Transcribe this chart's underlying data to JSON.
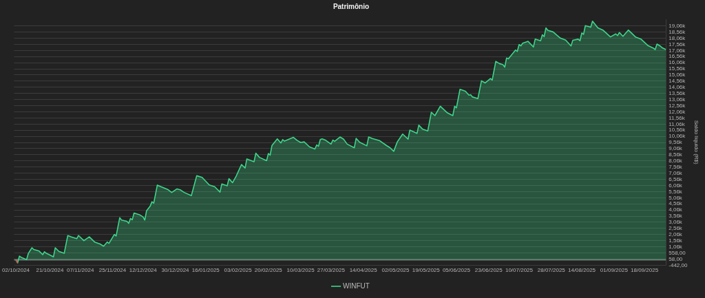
{
  "chart_data": {
    "type": "area",
    "title": "Patrimônio",
    "ylabel": "Saldo líquido (R$)",
    "x": [
      "2024-10-02",
      "2024-10-03",
      "2024-10-04",
      "2024-10-05",
      "2024-10-08",
      "2024-10-09",
      "2024-10-11",
      "2024-10-12",
      "2024-10-15",
      "2024-10-17",
      "2024-10-18",
      "2024-10-19",
      "2024-10-21",
      "2024-10-23",
      "2024-10-24",
      "2024-10-26",
      "2024-10-29",
      "2024-10-31",
      "2024-11-02",
      "2024-11-05",
      "2024-11-06",
      "2024-11-09",
      "2024-11-12",
      "2024-11-15",
      "2024-11-18",
      "2024-11-20",
      "2024-11-22",
      "2024-11-23",
      "2024-11-26",
      "2024-11-27",
      "2024-11-29",
      "2024-11-30",
      "2024-12-03",
      "2024-12-04",
      "2024-12-05",
      "2024-12-06",
      "2024-12-07",
      "2024-12-10",
      "2024-12-12",
      "2024-12-13",
      "2024-12-14",
      "2024-12-16",
      "2024-12-17",
      "2024-12-18",
      "2024-12-20",
      "2024-12-22",
      "2024-12-26",
      "2024-12-28",
      "2024-12-31",
      "2025-01-02",
      "2025-01-04",
      "2025-01-08",
      "2025-01-11",
      "2025-01-14",
      "2025-01-18",
      "2025-01-21",
      "2025-01-24",
      "2025-01-25",
      "2025-01-28",
      "2025-01-29",
      "2025-01-31",
      "2025-02-02",
      "2025-02-05",
      "2025-02-07",
      "2025-02-08",
      "2025-02-12",
      "2025-02-13",
      "2025-02-15",
      "2025-02-19",
      "2025-02-20",
      "2025-02-21",
      "2025-02-22",
      "2025-02-25",
      "2025-02-27",
      "2025-02-28",
      "2025-03-01",
      "2025-03-06",
      "2025-03-08",
      "2025-03-10",
      "2025-03-12",
      "2025-03-15",
      "2025-03-18",
      "2025-03-19",
      "2025-03-20",
      "2025-03-21",
      "2025-03-22",
      "2025-03-24",
      "2025-03-27",
      "2025-03-28",
      "2025-03-29",
      "2025-04-01",
      "2025-04-03",
      "2025-04-05",
      "2025-04-09",
      "2025-04-10",
      "2025-04-12",
      "2025-04-16",
      "2025-04-17",
      "2025-04-19",
      "2025-04-23",
      "2025-04-27",
      "2025-04-29",
      "2025-05-01",
      "2025-05-03",
      "2025-05-06",
      "2025-05-09",
      "2025-05-10",
      "2025-05-14",
      "2025-05-15",
      "2025-05-17",
      "2025-05-20",
      "2025-05-22",
      "2025-05-24",
      "2025-05-27",
      "2025-05-31",
      "2025-06-03",
      "2025-06-04",
      "2025-06-05",
      "2025-06-07",
      "2025-06-10",
      "2025-06-12",
      "2025-06-13",
      "2025-06-14",
      "2025-06-17",
      "2025-06-19",
      "2025-06-21",
      "2025-06-24",
      "2025-06-25",
      "2025-06-27",
      "2025-06-29",
      "2025-07-01",
      "2025-07-02",
      "2025-07-03",
      "2025-07-04",
      "2025-07-08",
      "2025-07-09",
      "2025-07-10",
      "2025-07-11",
      "2025-07-12",
      "2025-07-15",
      "2025-07-18",
      "2025-07-19",
      "2025-07-22",
      "2025-07-23",
      "2025-07-24",
      "2025-07-25",
      "2025-07-26",
      "2025-07-29",
      "2025-08-02",
      "2025-08-05",
      "2025-08-08",
      "2025-08-09",
      "2025-08-12",
      "2025-08-13",
      "2025-08-14",
      "2025-08-15",
      "2025-08-16",
      "2025-08-19",
      "2025-08-20",
      "2025-08-23",
      "2025-08-26",
      "2025-08-30",
      "2025-09-02",
      "2025-09-03",
      "2025-09-04",
      "2025-09-06",
      "2025-09-09",
      "2025-09-13",
      "2025-09-16",
      "2025-09-20",
      "2025-09-23",
      "2025-09-24",
      "2025-09-25",
      "2025-09-27",
      "2025-09-28",
      "2025-09-30"
    ],
    "series": [
      {
        "name": "WINFUT",
        "color": "#3dd68a",
        "values": [
          0,
          -250,
          300,
          200,
          20,
          530,
          980,
          840,
          710,
          420,
          660,
          530,
          390,
          240,
          980,
          690,
          530,
          1980,
          1870,
          1720,
          1980,
          1560,
          1870,
          1450,
          1290,
          1110,
          1450,
          1340,
          2070,
          1940,
          3430,
          3240,
          3140,
          2970,
          3370,
          3260,
          3810,
          3680,
          3500,
          3240,
          4000,
          4370,
          4730,
          4620,
          6090,
          5960,
          5720,
          5490,
          5780,
          5690,
          5490,
          5230,
          6850,
          6720,
          6100,
          5960,
          5520,
          6180,
          6030,
          6610,
          6290,
          6810,
          7770,
          7480,
          8220,
          7990,
          8690,
          8350,
          8080,
          8660,
          8530,
          9310,
          9850,
          9520,
          9800,
          9670,
          9980,
          9740,
          9560,
          9610,
          9200,
          9030,
          9360,
          9250,
          9800,
          9850,
          9740,
          9430,
          9760,
          9650,
          10010,
          9830,
          9430,
          9130,
          9890,
          9580,
          9290,
          10010,
          9890,
          9720,
          9310,
          9130,
          8840,
          9610,
          10250,
          9830,
          10570,
          10300,
          10970,
          10660,
          10500,
          12020,
          11750,
          12510,
          11970,
          11750,
          12510,
          12380,
          13890,
          13740,
          13420,
          13450,
          13270,
          13140,
          14590,
          14410,
          14770,
          14650,
          16170,
          15990,
          15900,
          15700,
          16440,
          16380,
          17090,
          16980,
          17540,
          17430,
          17650,
          17800,
          17340,
          17990,
          17850,
          18340,
          18190,
          18900,
          18700,
          18570,
          18070,
          17900,
          17430,
          17890,
          17980,
          17850,
          18480,
          18370,
          19080,
          18950,
          19440,
          18900,
          18700,
          18160,
          18410,
          18270,
          18520,
          18210,
          18720,
          18160,
          17990,
          17450,
          17250,
          17130,
          17580,
          17400,
          17270,
          17130
        ]
      },
      {
        "type": "line",
        "color": "#e5484d",
        "x": [
          "2024-10-02",
          "2024-10-03"
        ],
        "values": [
          0,
          -250
        ]
      }
    ],
    "xlim": [
      "2024-10-01",
      "2025-09-30"
    ],
    "xticks": [
      {
        "value": "2024-10-02",
        "label": "02/10/2024"
      },
      {
        "value": "2024-10-21",
        "label": "21/10/2024"
      },
      {
        "value": "2024-11-07",
        "label": "07/11/2024"
      },
      {
        "value": "2024-11-25",
        "label": "25/11/2024"
      },
      {
        "value": "2024-12-12",
        "label": "12/12/2024"
      },
      {
        "value": "2024-12-30",
        "label": "30/12/2024"
      },
      {
        "value": "2025-01-16",
        "label": "16/01/2025"
      },
      {
        "value": "2025-02-03",
        "label": "03/02/2025"
      },
      {
        "value": "2025-02-20",
        "label": "20/02/2025"
      },
      {
        "value": "2025-03-10",
        "label": "10/03/2025"
      },
      {
        "value": "2025-03-27",
        "label": "27/03/2025"
      },
      {
        "value": "2025-04-14",
        "label": "14/04/2025"
      },
      {
        "value": "2025-05-02",
        "label": "02/05/2025"
      },
      {
        "value": "2025-05-19",
        "label": "19/05/2025"
      },
      {
        "value": "2025-06-05",
        "label": "05/06/2025"
      },
      {
        "value": "2025-06-23",
        "label": "23/06/2025"
      },
      {
        "value": "2025-07-10",
        "label": "10/07/2025"
      },
      {
        "value": "2025-07-28",
        "label": "28/07/2025"
      },
      {
        "value": "2025-08-14",
        "label": "14/08/2025"
      },
      {
        "value": "2025-09-01",
        "label": "01/09/2025"
      },
      {
        "value": "2025-09-18",
        "label": "18/09/2025"
      }
    ],
    "ylim": [
      -442,
      19600
    ],
    "yticks": [
      {
        "value": -442,
        "label": "-442,00"
      },
      {
        "value": 58,
        "label": "58,00"
      },
      {
        "value": 558,
        "label": "558,00"
      },
      {
        "value": 1058,
        "label": "1,06k"
      },
      {
        "value": 1558,
        "label": "1,56k"
      },
      {
        "value": 2058,
        "label": "2,06k"
      },
      {
        "value": 2558,
        "label": "2,56k"
      },
      {
        "value": 3058,
        "label": "3,06k"
      },
      {
        "value": 3558,
        "label": "3,56k"
      },
      {
        "value": 4058,
        "label": "4,06k"
      },
      {
        "value": 4558,
        "label": "4,56k"
      },
      {
        "value": 5058,
        "label": "5,06k"
      },
      {
        "value": 5558,
        "label": "5,56k"
      },
      {
        "value": 6058,
        "label": "6,06k"
      },
      {
        "value": 6558,
        "label": "6,56k"
      },
      {
        "value": 7058,
        "label": "7,06k"
      },
      {
        "value": 7558,
        "label": "7,56k"
      },
      {
        "value": 8058,
        "label": "8,06k"
      },
      {
        "value": 8558,
        "label": "8,56k"
      },
      {
        "value": 9058,
        "label": "9,06k"
      },
      {
        "value": 9558,
        "label": "9,56k"
      },
      {
        "value": 10058,
        "label": "10,06k"
      },
      {
        "value": 10558,
        "label": "10,56k"
      },
      {
        "value": 11058,
        "label": "11,06k"
      },
      {
        "value": 11558,
        "label": "11,56k"
      },
      {
        "value": 12058,
        "label": "12,06k"
      },
      {
        "value": 12558,
        "label": "12,56k"
      },
      {
        "value": 13058,
        "label": "13,06k"
      },
      {
        "value": 13558,
        "label": "13,56k"
      },
      {
        "value": 14058,
        "label": "14,06k"
      },
      {
        "value": 14558,
        "label": "14,56k"
      },
      {
        "value": 15058,
        "label": "15,06k"
      },
      {
        "value": 15558,
        "label": "15,56k"
      },
      {
        "value": 16058,
        "label": "16,06k"
      },
      {
        "value": 16558,
        "label": "16,56k"
      },
      {
        "value": 17058,
        "label": "17,06k"
      },
      {
        "value": 17558,
        "label": "17,56k"
      },
      {
        "value": 18058,
        "label": "18,06k"
      },
      {
        "value": 18558,
        "label": "18,56k"
      },
      {
        "value": 19058,
        "label": "19,06k"
      }
    ],
    "ref_lines": [
      {
        "axis": "y",
        "value": 0,
        "color": "#6e6e6e"
      }
    ],
    "grid": "y",
    "legend": "bottom",
    "marker": "none",
    "line_style": "solid"
  }
}
